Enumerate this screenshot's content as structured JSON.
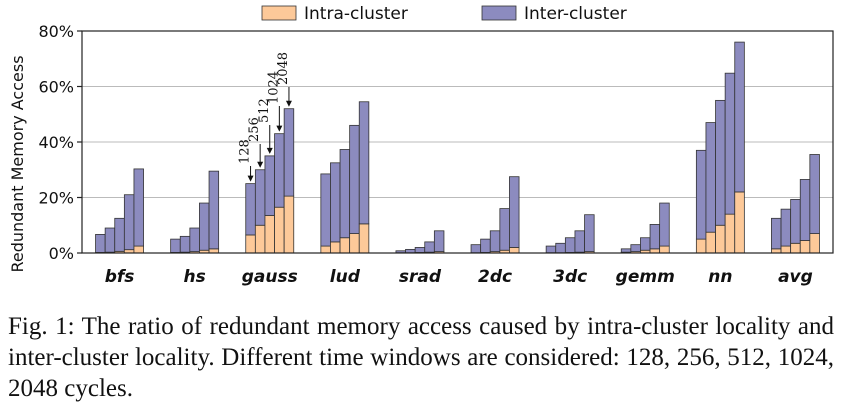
{
  "chart_data": {
    "type": "bar",
    "stacked": true,
    "ylabel": "Redundant Memory Access",
    "ylim": [
      0,
      80
    ],
    "yticks": [
      0,
      20,
      40,
      60,
      80
    ],
    "ytick_labels": [
      "0%",
      "20%",
      "40%",
      "60%",
      "80%"
    ],
    "grid": "horizontal",
    "legend_position": "top",
    "legend": [
      "Intra-cluster",
      "Inter-cluster"
    ],
    "colors": {
      "intra": "#fdc999",
      "inter": "#8c8bbf"
    },
    "windows": [
      128,
      256,
      512,
      1024,
      2048
    ],
    "annotation_labels": [
      "128",
      "256",
      "512",
      "1024",
      "2048"
    ],
    "annotated_category": "gauss",
    "categories": [
      "bfs",
      "hs",
      "gauss",
      "lud",
      "srad",
      "2dc",
      "3dc",
      "gemm",
      "nn",
      "avg"
    ],
    "series": [
      {
        "name": "Intra-cluster",
        "values": [
          [
            0.2,
            0.3,
            0.6,
            1.2,
            2.5
          ],
          [
            0.2,
            0.3,
            0.5,
            1.0,
            1.5
          ],
          [
            6.5,
            10.0,
            13.5,
            16.5,
            20.5
          ],
          [
            2.5,
            4.0,
            5.5,
            7.0,
            10.5
          ],
          [
            0.1,
            0.1,
            0.2,
            0.3,
            0.5
          ],
          [
            0.1,
            0.2,
            0.5,
            1.0,
            2.0
          ],
          [
            0.1,
            0.1,
            0.2,
            0.3,
            0.5
          ],
          [
            0.3,
            0.5,
            1.0,
            1.5,
            2.5
          ],
          [
            5.0,
            7.5,
            10.0,
            14.0,
            22.0
          ],
          [
            1.5,
            2.5,
            3.5,
            4.5,
            7.0
          ]
        ]
      },
      {
        "name": "Inter-cluster",
        "values": [
          [
            6.5,
            8.7,
            11.9,
            19.8,
            27.8
          ],
          [
            4.8,
            5.7,
            8.5,
            17.0,
            28.0
          ],
          [
            18.5,
            20.0,
            21.5,
            26.5,
            31.5
          ],
          [
            26.0,
            28.5,
            31.8,
            39.0,
            44.0
          ],
          [
            0.7,
            1.2,
            1.8,
            3.7,
            7.5
          ],
          [
            2.9,
            4.8,
            7.5,
            15.0,
            25.5
          ],
          [
            2.4,
            3.4,
            5.3,
            7.7,
            13.3
          ],
          [
            1.2,
            2.5,
            4.5,
            8.8,
            15.5
          ],
          [
            32.0,
            39.5,
            45.0,
            50.8,
            54.0
          ],
          [
            11.0,
            13.3,
            15.8,
            22.0,
            28.5
          ]
        ]
      }
    ]
  },
  "caption": "Fig. 1: The ratio of redundant memory access caused by intra-cluster locality and inter-cluster locality. Different time windows are considered: 128, 256, 512, 1024, 2048 cycles."
}
